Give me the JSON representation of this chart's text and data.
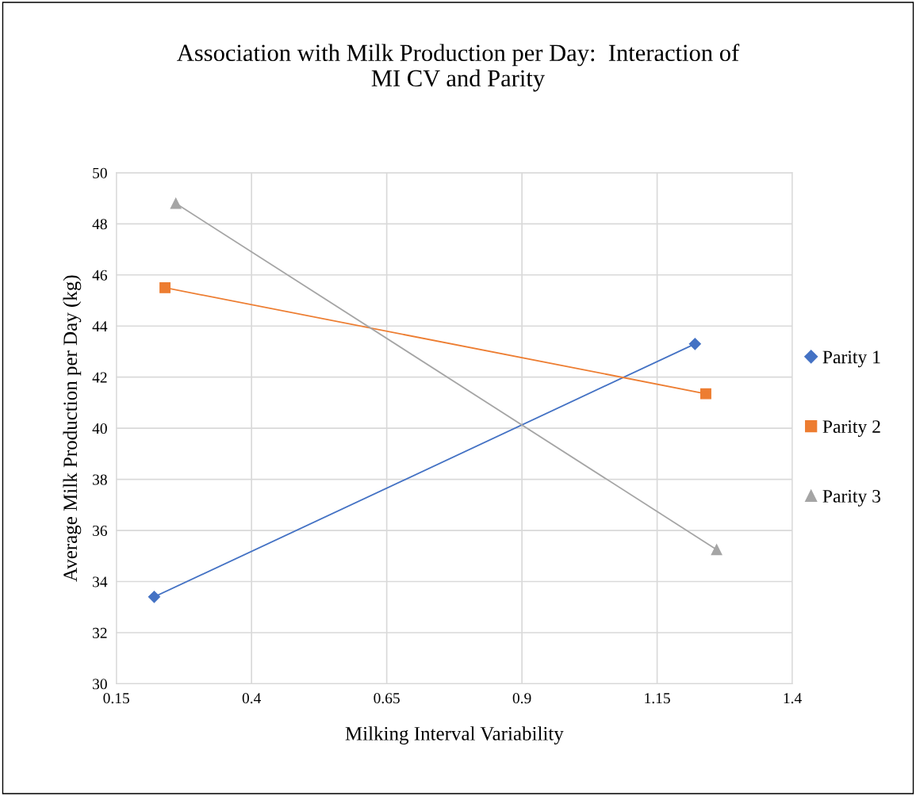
{
  "chart_data": {
    "type": "line",
    "title": "Association with Milk Production per Day:  Interaction of\nMI CV and Parity",
    "xlabel": "Milking Interval Variability",
    "ylabel": "Average Milk Production per Day (kg)",
    "xlim": [
      0.15,
      1.4
    ],
    "xticks": [
      0.15,
      0.4,
      0.65,
      0.9,
      1.15,
      1.4
    ],
    "ylim": [
      30,
      50
    ],
    "yticks": [
      30,
      32,
      34,
      36,
      38,
      40,
      42,
      44,
      46,
      48,
      50
    ],
    "grid": true,
    "legend": "right",
    "series": [
      {
        "name": "Parity 1",
        "color": "#4472c4",
        "marker": "diamond",
        "x": [
          0.22,
          1.22
        ],
        "values": [
          33.4,
          43.3
        ]
      },
      {
        "name": "Parity 2",
        "color": "#ed7d31",
        "marker": "square",
        "x": [
          0.24,
          1.24
        ],
        "values": [
          45.5,
          41.35
        ]
      },
      {
        "name": "Parity 3",
        "color": "#a5a5a5",
        "marker": "triangle",
        "x": [
          0.26,
          1.26
        ],
        "values": [
          48.8,
          35.25
        ]
      }
    ]
  }
}
